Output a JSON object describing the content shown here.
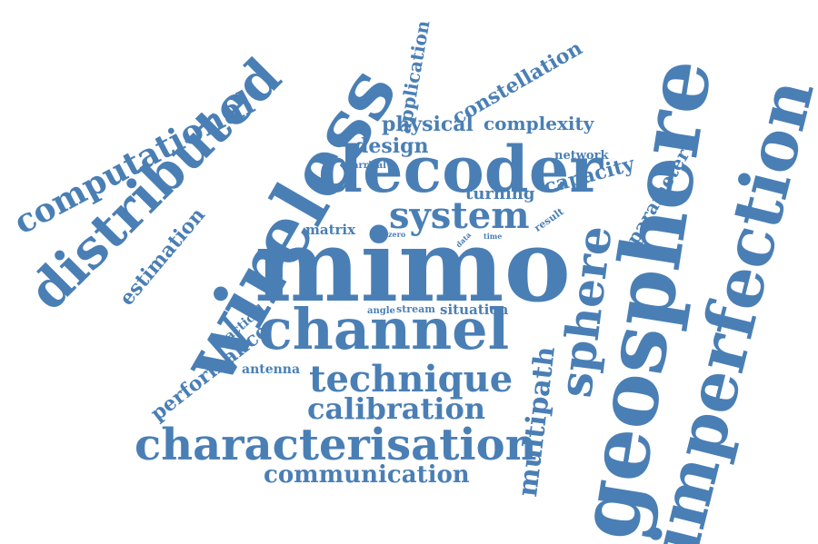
{
  "color": "#4a7fb5",
  "words": [
    "mimo",
    "channel",
    "decoder",
    "wireless",
    "geosphere",
    "imperfection",
    "distributed",
    "sphere",
    "characterisation",
    "system",
    "technique",
    "computational",
    "calibration",
    "communication",
    "multipath",
    "performance",
    "estimation",
    "constellation",
    "application",
    "parameter",
    "physical",
    "complexity",
    "design",
    "capacity",
    "turning",
    "network",
    "matrix",
    "situation",
    "practical",
    "antenna",
    "stream",
    "angle",
    "arrival",
    "result",
    "zero",
    "data",
    "time"
  ]
}
